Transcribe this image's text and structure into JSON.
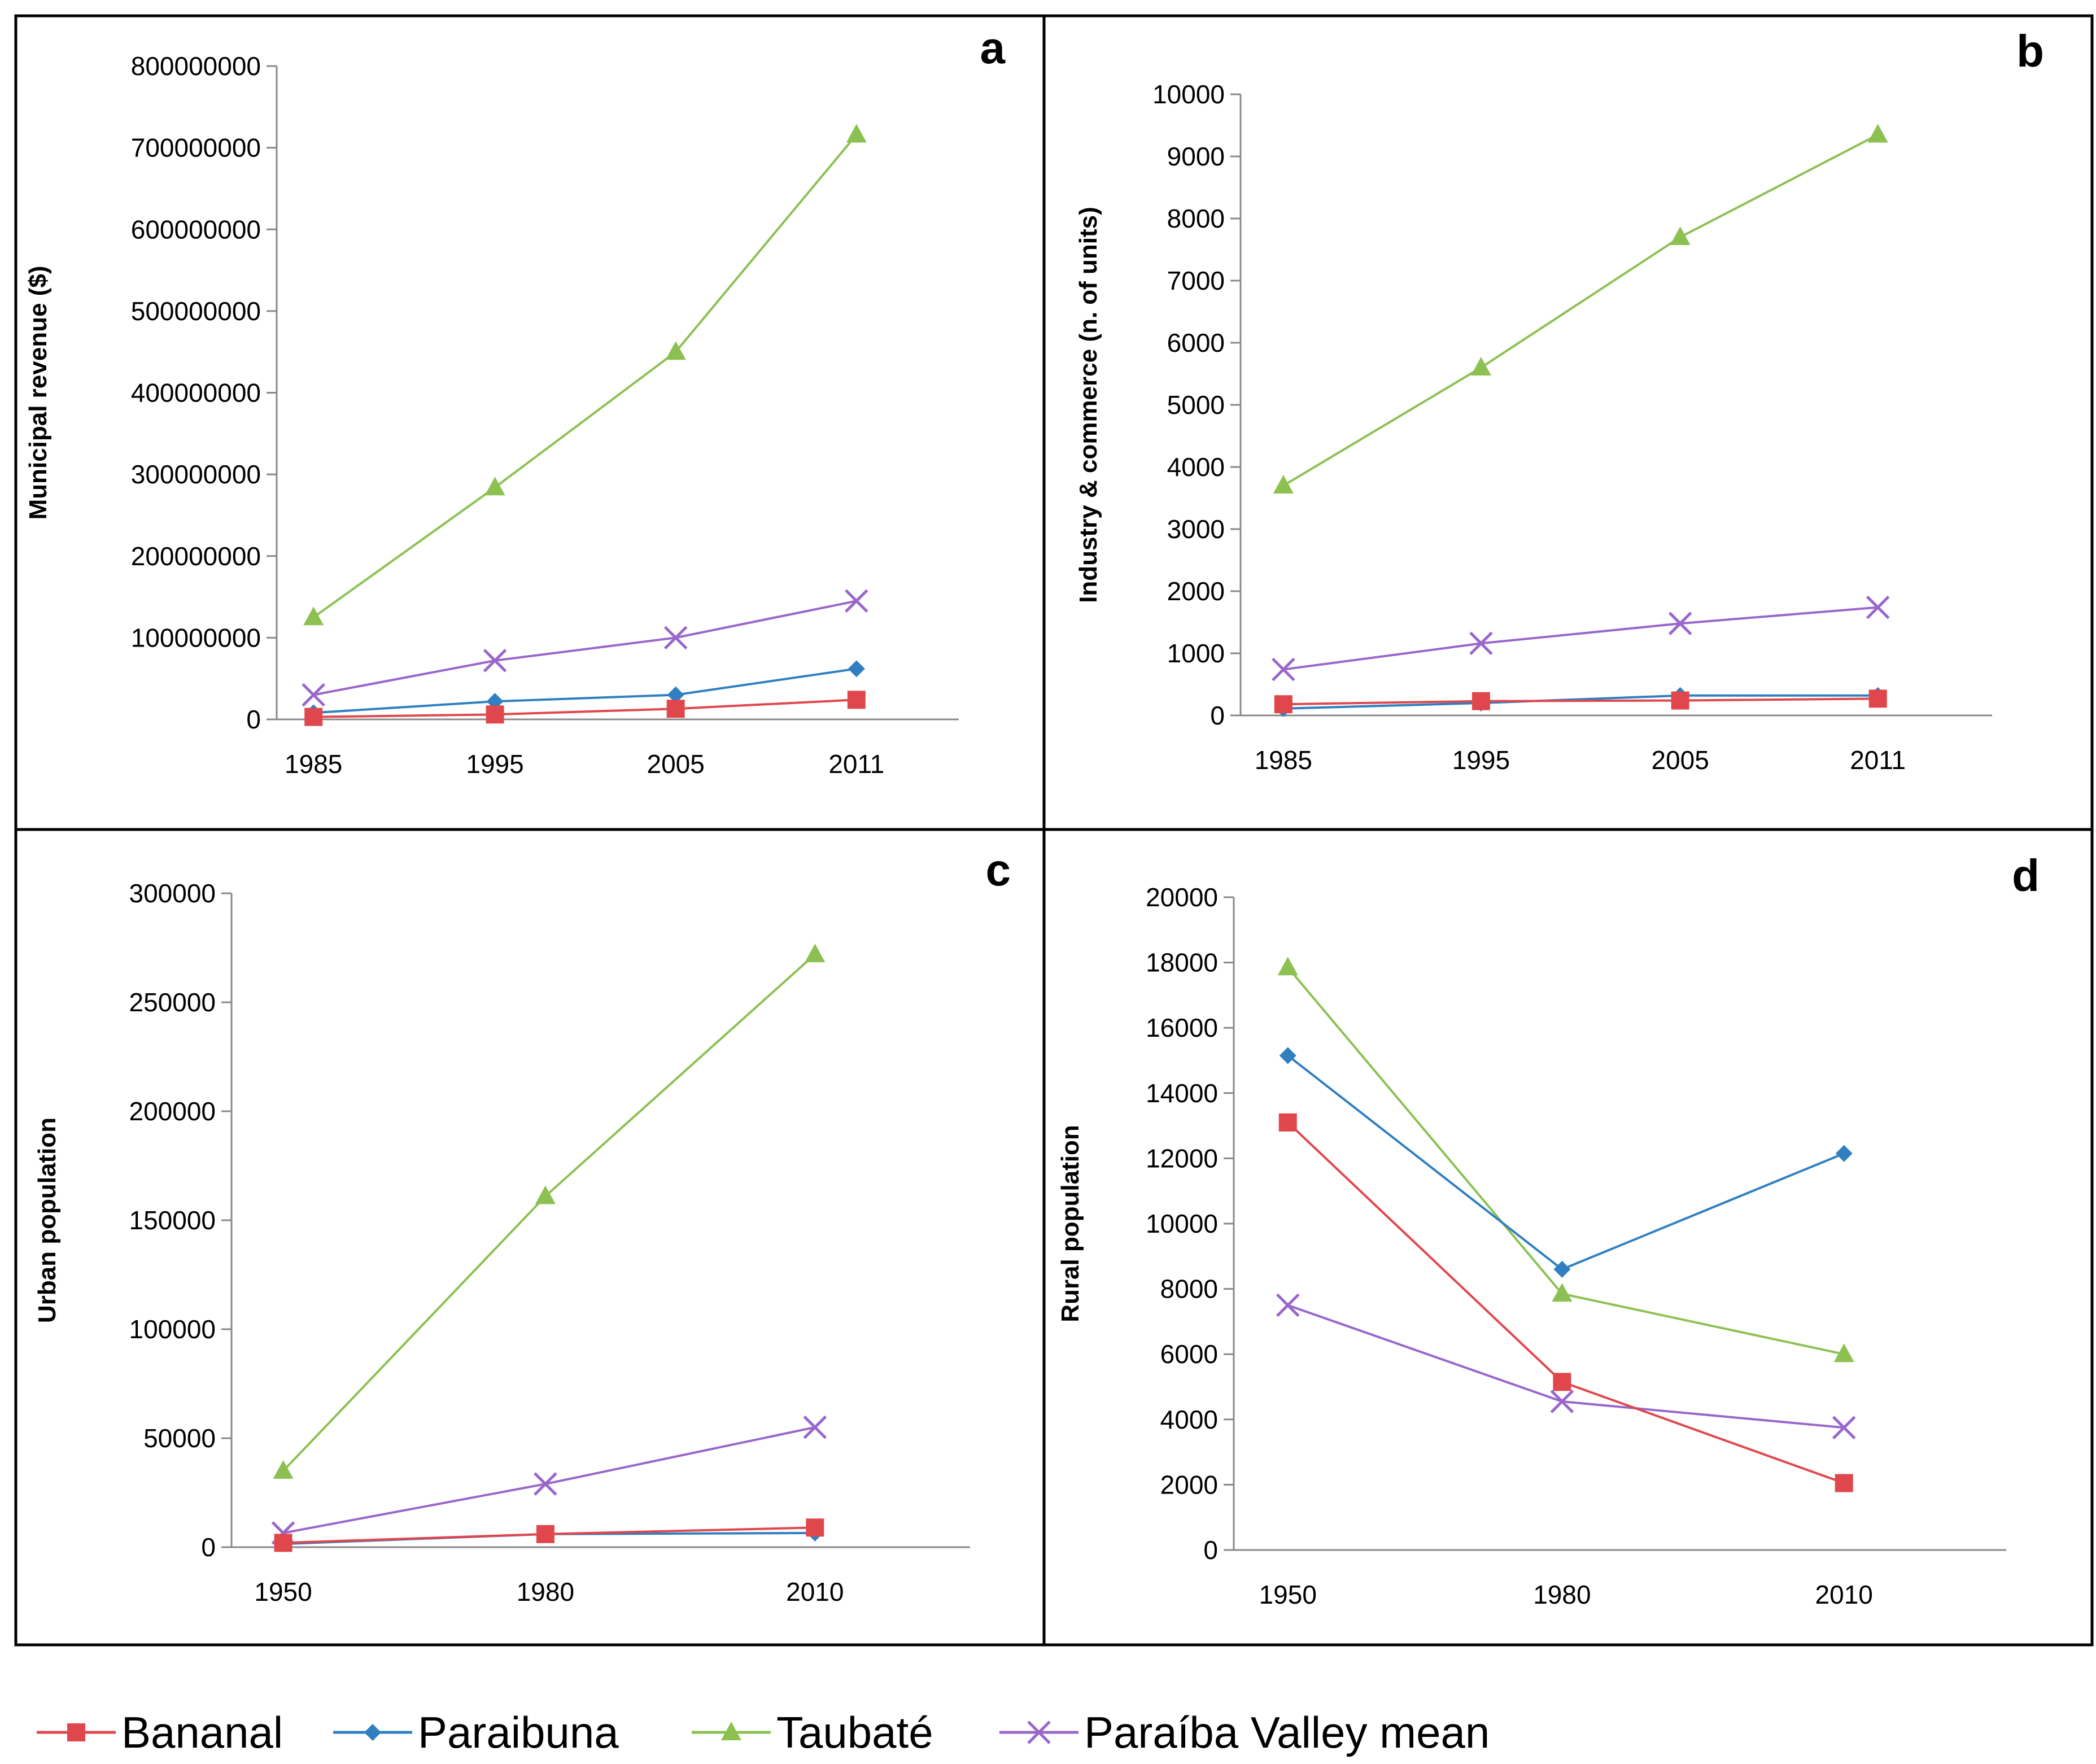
{
  "colors": {
    "Bananal": "#e0474c",
    "Paraibuna": "#2f7fc1",
    "Taubaté": "#8cc152",
    "Paraíba Valley mean": "#9966cc"
  },
  "chart_data": [
    {
      "panel": "a",
      "type": "line",
      "ylabel": "Municipal revenue ($)",
      "categories": [
        "1985",
        "1995",
        "2005",
        "2011"
      ],
      "yticks": [
        "0",
        "100000000",
        "200000000",
        "300000000",
        "400000000",
        "500000000",
        "600000000",
        "700000000",
        "800000000"
      ],
      "ylim": [
        0,
        800000000
      ],
      "series": [
        {
          "name": "Bananal",
          "values": [
            3000000,
            6000000,
            13000000,
            24000000
          ]
        },
        {
          "name": "Paraibuna",
          "values": [
            8000000,
            22000000,
            30000000,
            62000000
          ]
        },
        {
          "name": "Taubaté",
          "values": [
            125000000,
            284000000,
            450000000,
            716000000
          ]
        },
        {
          "name": "Paraíba Valley mean",
          "values": [
            30000000,
            72000000,
            100000000,
            145000000
          ]
        }
      ]
    },
    {
      "panel": "b",
      "type": "line",
      "ylabel": "Industry & commerce (n. of units)",
      "categories": [
        "1985",
        "1995",
        "2005",
        "2011"
      ],
      "yticks": [
        "0",
        "1000",
        "2000",
        "3000",
        "4000",
        "5000",
        "6000",
        "7000",
        "8000",
        "9000",
        "10000"
      ],
      "ylim": [
        0,
        10000
      ],
      "series": [
        {
          "name": "Bananal",
          "values": [
            180,
            230,
            240,
            270
          ]
        },
        {
          "name": "Paraibuna",
          "values": [
            110,
            200,
            320,
            320
          ]
        },
        {
          "name": "Taubaté",
          "values": [
            3700,
            5600,
            7700,
            9350
          ]
        },
        {
          "name": "Paraíba Valley mean",
          "values": [
            740,
            1160,
            1480,
            1740
          ]
        }
      ]
    },
    {
      "panel": "c",
      "type": "line",
      "ylabel": "Urban population",
      "categories": [
        "1950",
        "1980",
        "2010"
      ],
      "yticks": [
        "0",
        "50000",
        "100000",
        "150000",
        "200000",
        "250000",
        "300000"
      ],
      "ylim": [
        0,
        300000
      ],
      "series": [
        {
          "name": "Bananal",
          "values": [
            2000,
            6000,
            9000
          ]
        },
        {
          "name": "Paraibuna",
          "values": [
            1500,
            6000,
            6500
          ]
        },
        {
          "name": "Taubaté",
          "values": [
            35000,
            161000,
            272000
          ]
        },
        {
          "name": "Paraíba Valley mean",
          "values": [
            6500,
            29000,
            55000
          ]
        }
      ]
    },
    {
      "panel": "d",
      "type": "line",
      "ylabel": "Rural population",
      "categories": [
        "1950",
        "1980",
        "2010"
      ],
      "yticks": [
        "0",
        "2000",
        "4000",
        "6000",
        "8000",
        "10000",
        "12000",
        "14000",
        "16000",
        "18000",
        "20000"
      ],
      "ylim": [
        0,
        20000
      ],
      "series": [
        {
          "name": "Bananal",
          "values": [
            13100,
            5150,
            2050
          ]
        },
        {
          "name": "Paraibuna",
          "values": [
            15150,
            8600,
            12150
          ]
        },
        {
          "name": "Taubaté",
          "values": [
            17850,
            7850,
            6000
          ]
        },
        {
          "name": "Paraíba Valley mean",
          "values": [
            7500,
            4550,
            3750
          ]
        }
      ]
    }
  ],
  "legend": [
    "Bananal",
    "Paraibuna",
    "Taubaté",
    "Paraíba Valley mean"
  ]
}
